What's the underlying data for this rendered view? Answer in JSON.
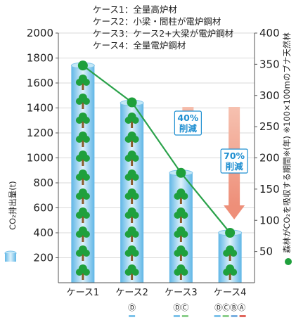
{
  "chart_data": {
    "type": "bar+line",
    "categories": [
      "ケース1",
      "ケース2",
      "ケース3",
      "ケース4"
    ],
    "category_markers": [
      "",
      "Ⓓ",
      "ⒹⒸ",
      "ⒹⒸⒷⒶ"
    ],
    "bar_series": {
      "name": "CO₂排出量(t)",
      "values": [
        1740,
        1440,
        880,
        400
      ],
      "color": "#8fd0ee"
    },
    "line_series": {
      "name": "森林がCO₂を吸収する期間※(年) ※100×100mのブナ天然林",
      "values": [
        348,
        289,
        176,
        80
      ],
      "color": "#2aa24a"
    },
    "left_axis": {
      "label": "CO₂排出量(t)",
      "ticks": [
        200,
        400,
        600,
        800,
        1000,
        1200,
        1400,
        1600,
        1800,
        2000
      ],
      "ylim": [
        0,
        2000
      ]
    },
    "right_axis": {
      "label": "森林がCO₂を吸収する期間※(年) ※100×100mのブナ天然林",
      "ticks": [
        50,
        100,
        150,
        200,
        250,
        300,
        350,
        400
      ],
      "ylim": [
        0,
        400
      ]
    },
    "notes": [
      "ケース1：全量高炉材",
      "ケース2：小梁・間柱が電炉鋼材",
      "ケース3：ケース2+大梁が電炉鋼材",
      "ケース4：全量電炉鋼材"
    ],
    "annotations": [
      {
        "label1": "40%",
        "label2": "削減",
        "at_category": 2
      },
      {
        "label1": "70%",
        "label2": "削減",
        "at_category": 3
      }
    ],
    "legend_swatch_colors": [
      "#7ec3ea",
      "#8ccf8c",
      "#7bb0e0",
      "#e0665c"
    ]
  }
}
